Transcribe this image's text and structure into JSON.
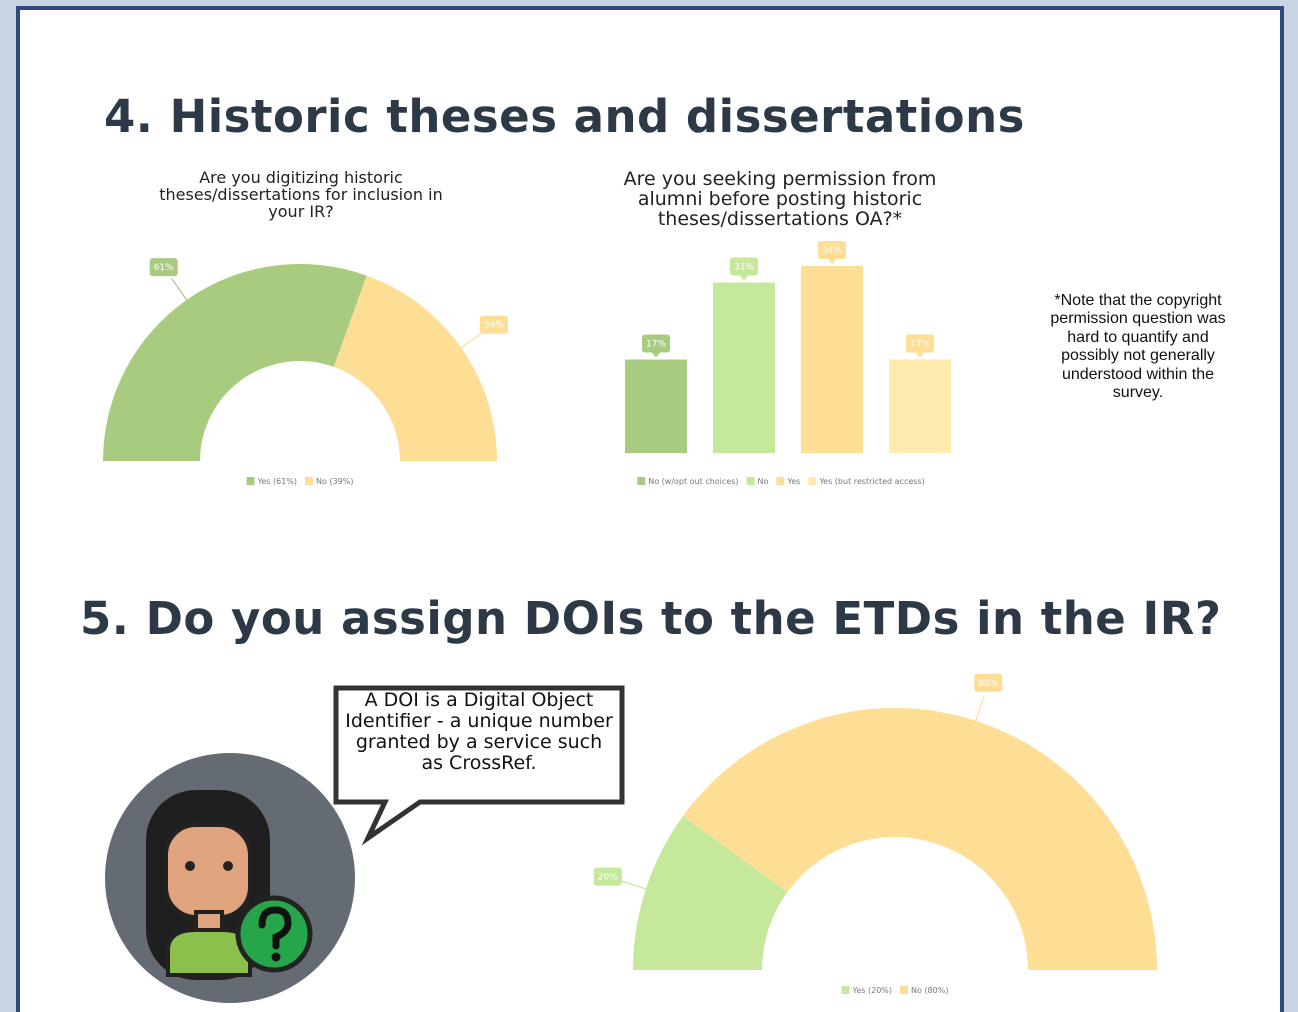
{
  "headings": [
    "4. Historic theses and dissertations",
    "5. Do you assign DOIs to the ETDs in the IR?"
  ],
  "note": "*Note that the copyright permission question was hard to quantify and possibly not generally understood within the survey.",
  "callout": "A DOI is a Digital Object Identifier - a unique number granted by a service such as CrossRef.",
  "chart_data": [
    {
      "type": "half-donut",
      "title": "Are you digitizing historic theses/dissertations for inclusion in your IR?",
      "categories": [
        "Yes (61%)",
        "No (39%)"
      ],
      "values": [
        61,
        39
      ],
      "value_labels": [
        "61%",
        "39%"
      ],
      "colors": [
        "#a9cb7f",
        "#fedd95"
      ]
    },
    {
      "type": "bar",
      "title": "Are you seeking permission from alumni before posting historic theses/dissertations OA?*",
      "categories": [
        "No (w/opt out choices)",
        "No",
        "Yes",
        "Yes (but restricted access)"
      ],
      "values": [
        17,
        31,
        34,
        17
      ],
      "value_labels": [
        "17%",
        "31%",
        "34%",
        "17%"
      ],
      "colors": [
        "#a9cb7f",
        "#c5e89a",
        "#fedd95",
        "#ffeab0"
      ]
    },
    {
      "type": "half-donut",
      "categories": [
        "Yes (20%)",
        "No (80%)"
      ],
      "values": [
        20,
        80
      ],
      "value_labels": [
        "20%",
        "80%"
      ],
      "colors": [
        "#c5e89a",
        "#fedd95"
      ]
    }
  ]
}
